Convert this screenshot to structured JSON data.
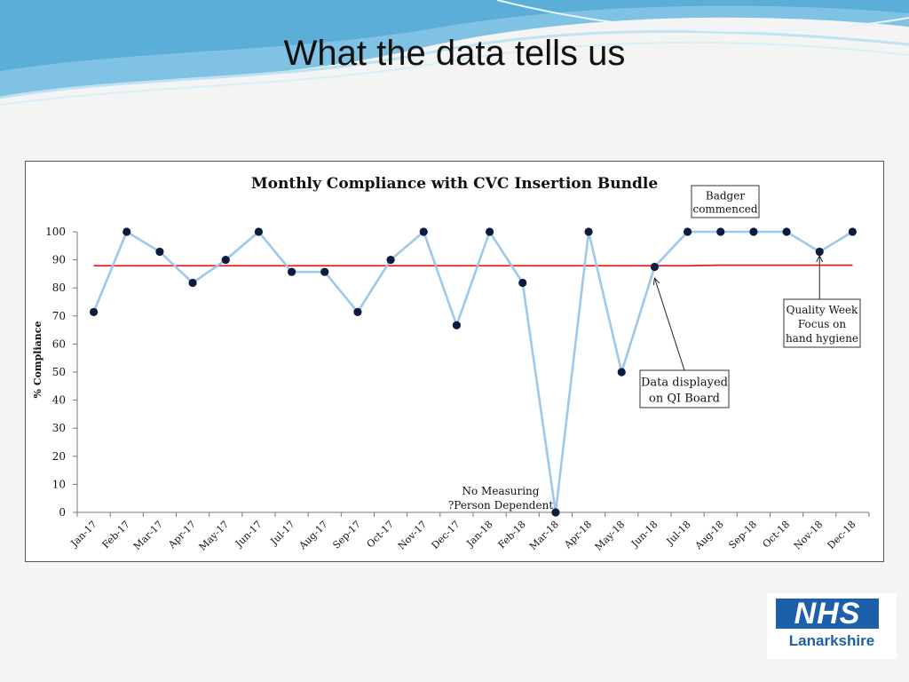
{
  "slide": {
    "title": "What the data tells us"
  },
  "logo": {
    "mark": "NHS",
    "name": "Lanarkshire"
  },
  "colors": {
    "series_line": "#9ec8ea",
    "marker": "#0d1b3e",
    "target_line": "#e02020",
    "header_wave_dark": "#5aaed8",
    "header_wave_light": "#bfe3f3",
    "nhs_blue": "#1d5fa8"
  },
  "chart_data": {
    "type": "line",
    "title": "Monthly Compliance with CVC Insertion Bundle",
    "ylabel": "% Compliance",
    "xlabel": "",
    "ylim": [
      0,
      100
    ],
    "yticks": [
      0,
      10,
      20,
      30,
      40,
      50,
      60,
      70,
      80,
      90,
      100
    ],
    "grid": false,
    "legend": "none",
    "categories": [
      "Jan-17",
      "Feb-17",
      "Mar-17",
      "Apr-17",
      "May-17",
      "Jun-17",
      "Jul-17",
      "Aug-17",
      "Sep-17",
      "Oct-17",
      "Nov-17",
      "Dec-17",
      "Jan-18",
      "Feb-18",
      "Mar-18",
      "Apr-18",
      "May-18",
      "Jun-18",
      "Jul-18",
      "Aug-18",
      "Sep-18",
      "Oct-18",
      "Nov-18",
      "Dec-18"
    ],
    "series": [
      {
        "values": [
          71.4,
          100,
          92.9,
          81.8,
          90,
          100,
          85.7,
          85.7,
          71.4,
          90,
          100,
          66.7,
          100,
          81.8,
          0,
          100,
          50,
          87.5,
          100,
          100,
          100,
          100,
          92.9,
          100
        ]
      }
    ],
    "target": {
      "values": [
        87.9,
        87.9,
        87.9,
        87.9,
        87.9,
        87.9,
        87.9,
        87.9,
        87.9,
        87.9,
        87.9,
        87.9,
        87.9,
        87.9,
        87.9,
        87.9,
        87.9,
        87.9,
        87.9,
        88.1,
        88.1,
        88.1,
        88.1,
        88.1
      ]
    },
    "annotations": [
      {
        "lines": [
          "Badger",
          "commenced"
        ],
        "boxed": true,
        "arrow_to": null
      },
      {
        "lines": [
          "Quality Week",
          "Focus on",
          "hand hygiene"
        ],
        "boxed": true,
        "arrow_to": {
          "category": "Nov-18",
          "value": 91.5
        }
      },
      {
        "lines": [
          "Data displayed",
          "on QI Board"
        ],
        "boxed": true,
        "arrow_to": {
          "category": "Jun-18",
          "value": 83.5
        }
      },
      {
        "lines": [
          "No Measuring",
          "?Person Dependent"
        ],
        "boxed": false,
        "arrow_to": null
      }
    ]
  }
}
